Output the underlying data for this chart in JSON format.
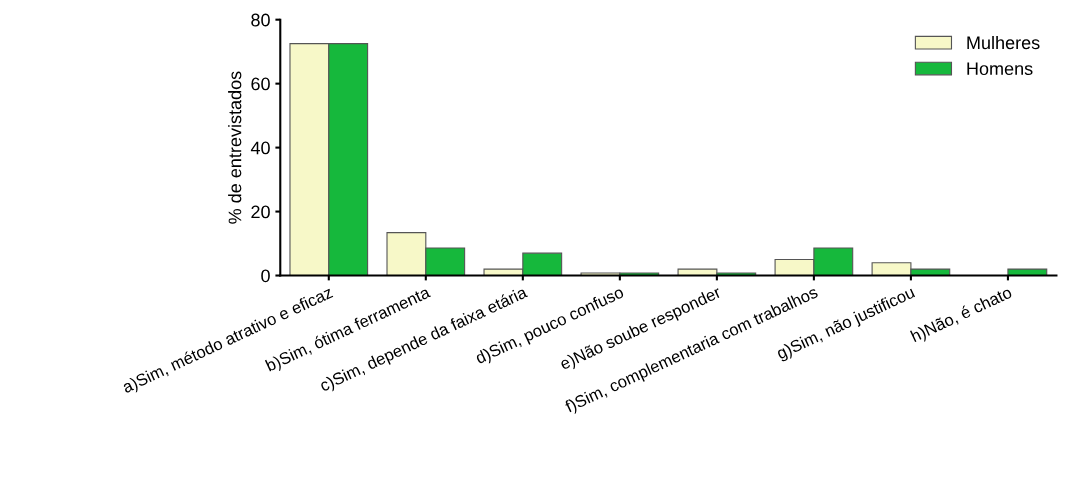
{
  "chart_data": {
    "type": "bar",
    "ylabel": "% de entrevistados",
    "categories": [
      "a)Sim, método atrativo e eficaz",
      "b)Sim, ótima ferramenta",
      "c)Sim, depende da faixa etária",
      "d)Sim, pouco confuso",
      "e)Não soube responder",
      "f)Sim, complementaria com trabalhos",
      "g)Sim, não justificou",
      "h)Não, é chato"
    ],
    "series": [
      {
        "name": "Mulheres",
        "color": "#f7f8c8",
        "values": [
          72.5,
          13.4,
          2,
          0.8,
          2,
          5,
          4,
          0
        ]
      },
      {
        "name": "Homens",
        "color": "#16b83c",
        "values": [
          72.5,
          8.6,
          7,
          0.8,
          0.8,
          8.6,
          2,
          2
        ]
      }
    ],
    "ylim": [
      0,
      80
    ],
    "yticks": [
      0,
      20,
      40,
      60,
      80
    ],
    "grid": false,
    "legend": "top right"
  }
}
